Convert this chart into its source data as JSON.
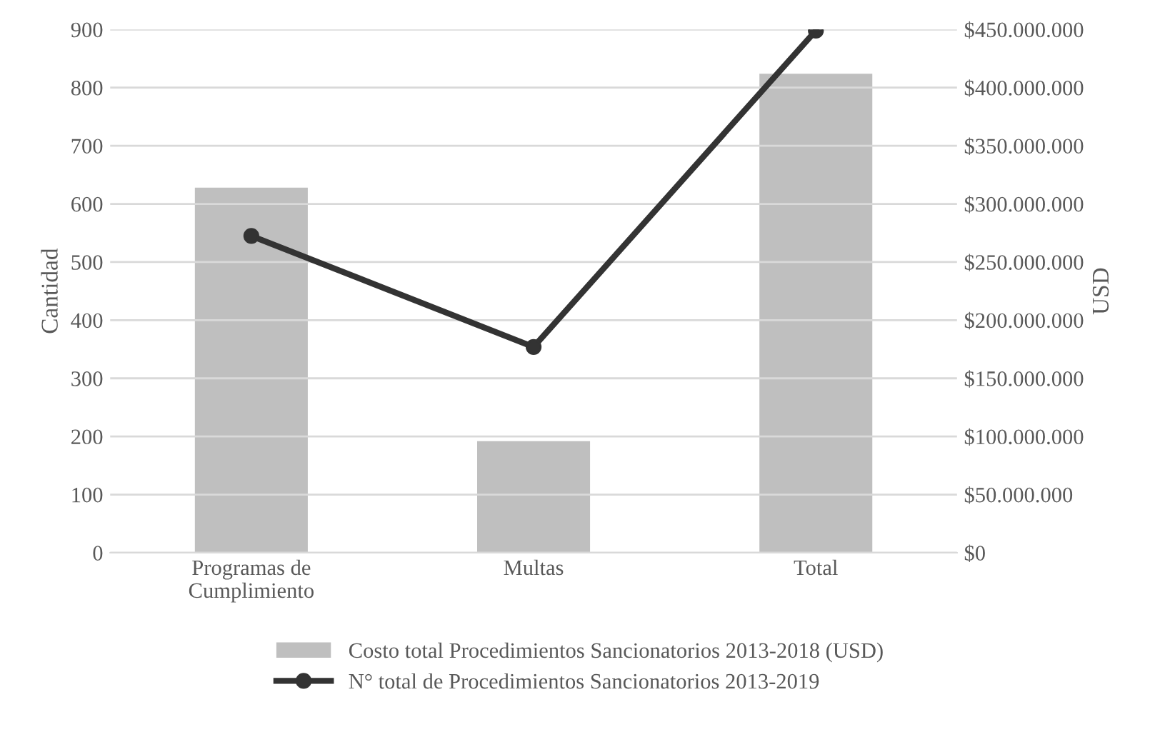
{
  "chart_data": {
    "type": "bar",
    "categories": [
      "Programas de\nCumplimiento",
      "Multas",
      "Total"
    ],
    "ylabel": "Cantidad",
    "y2label": "USD",
    "series": [
      {
        "name": "Costo total Procedimientos Sancionatorios 2013-2018 (USD)",
        "axis": "y2",
        "color": "#bfbfbf",
        "values": [
          314000000,
          96000000,
          412000000
        ]
      },
      {
        "name": "N° total de Procedimientos Sancionatorios 2013-2019",
        "type": "line",
        "axis": "y",
        "color": "#333333",
        "marker": "circle",
        "values": [
          545,
          354,
          898
        ]
      }
    ],
    "ylim": [
      0,
      900
    ],
    "yticks": [
      0,
      100,
      200,
      300,
      400,
      500,
      600,
      700,
      800,
      900
    ],
    "y2lim": [
      0,
      450000000
    ],
    "y2ticks": [
      {
        "value": 0,
        "label": "$0"
      },
      {
        "value": 50000000,
        "label": "$50.000.000"
      },
      {
        "value": 100000000,
        "label": "$100.000.000"
      },
      {
        "value": 150000000,
        "label": "$150.000.000"
      },
      {
        "value": 200000000,
        "label": "$200.000.000"
      },
      {
        "value": 250000000,
        "label": "$250.000.000"
      },
      {
        "value": 300000000,
        "label": "$300.000.000"
      },
      {
        "value": 350000000,
        "label": "$350.000.000"
      },
      {
        "value": 400000000,
        "label": "$400.000.000"
      },
      {
        "value": 450000000,
        "label": "$450.000.000"
      }
    ],
    "grid": "y",
    "legend": "bottom"
  }
}
